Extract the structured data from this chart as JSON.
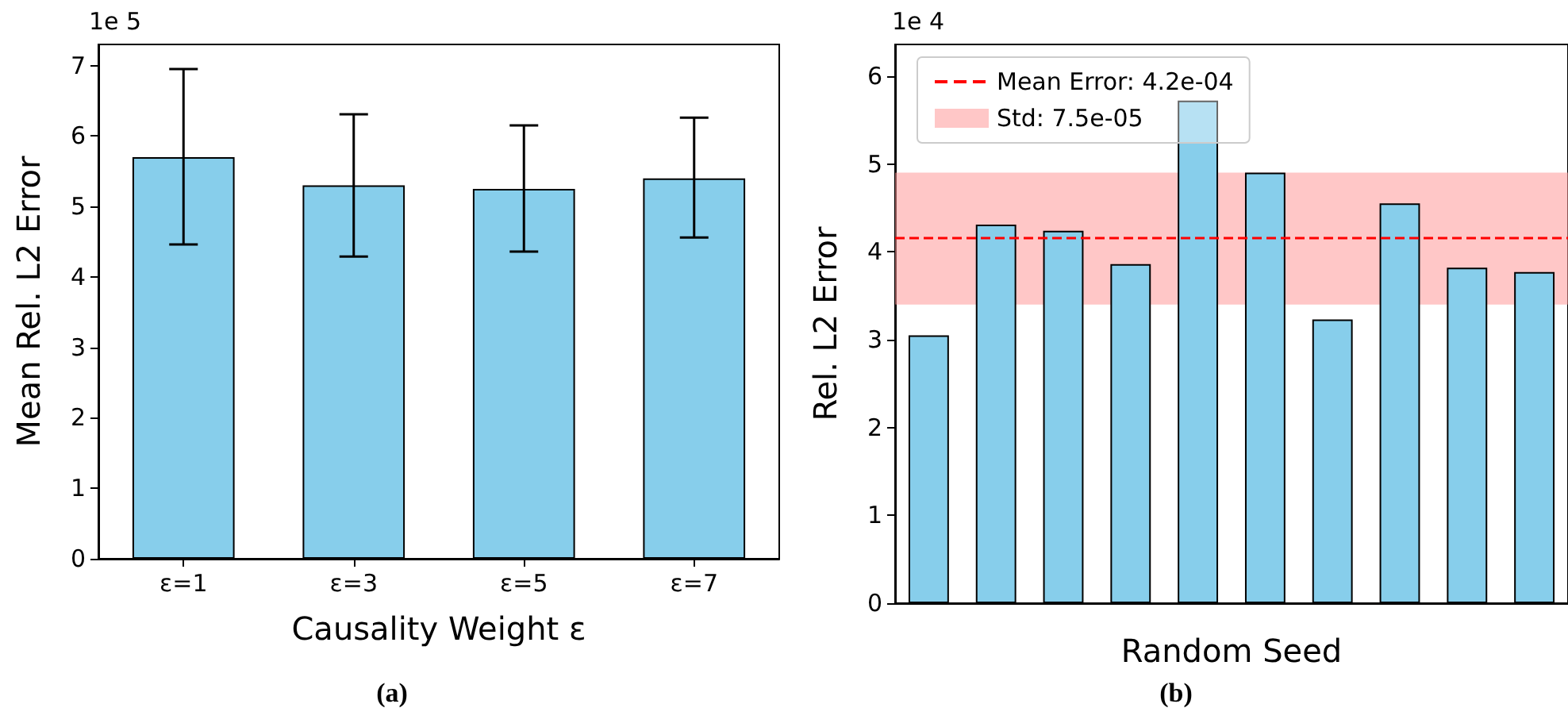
{
  "chart_data": [
    {
      "type": "bar",
      "xlabel": "Causality Weight ε",
      "ylabel": "Mean Rel. L2 Error",
      "annotations": [
        "1e 5",
        "(a)"
      ],
      "categories": [
        "ε=1",
        "ε=3",
        "ε=5",
        "ε=7"
      ],
      "values": [
        5.7,
        5.3,
        5.25,
        5.4
      ],
      "errors": [
        [
          4.46,
          6.95
        ],
        [
          4.29,
          6.31
        ],
        [
          4.36,
          6.15
        ],
        [
          4.56,
          6.26
        ]
      ],
      "color": "#87ceeb",
      "ylim": [
        0,
        7.3
      ],
      "yticks": [
        0,
        1,
        2,
        3,
        4,
        5,
        6,
        7
      ],
      "grid": false,
      "legend": false
    },
    {
      "type": "bar",
      "xlabel": "Random Seed",
      "ylabel": "Rel. L2 Error",
      "annotations": [
        "1e 4",
        "(b)"
      ],
      "categories": [
        null,
        null,
        null,
        null,
        null,
        null,
        null,
        null,
        null,
        null
      ],
      "values": [
        3.05,
        4.31,
        4.24,
        3.86,
        5.72,
        4.9,
        3.23,
        4.55,
        3.82,
        3.77
      ],
      "color": "#87ceeb",
      "ylim": [
        0,
        6.36
      ],
      "yticks": [
        0,
        1,
        2,
        3,
        4,
        5,
        6
      ],
      "grid": false,
      "tick_labels": "y",
      "legend": "top left",
      "ref_lines": [
        {
          "axis": "y",
          "value": 4.16,
          "label": "Mean Error: 4.2e-04",
          "color": "#ff0000",
          "line_style": "dashed"
        }
      ],
      "bands": [
        {
          "axis": "y",
          "from": 3.4,
          "to": 4.9,
          "label": "Std: 7.5e-05",
          "color": "#ff9999"
        }
      ]
    }
  ]
}
